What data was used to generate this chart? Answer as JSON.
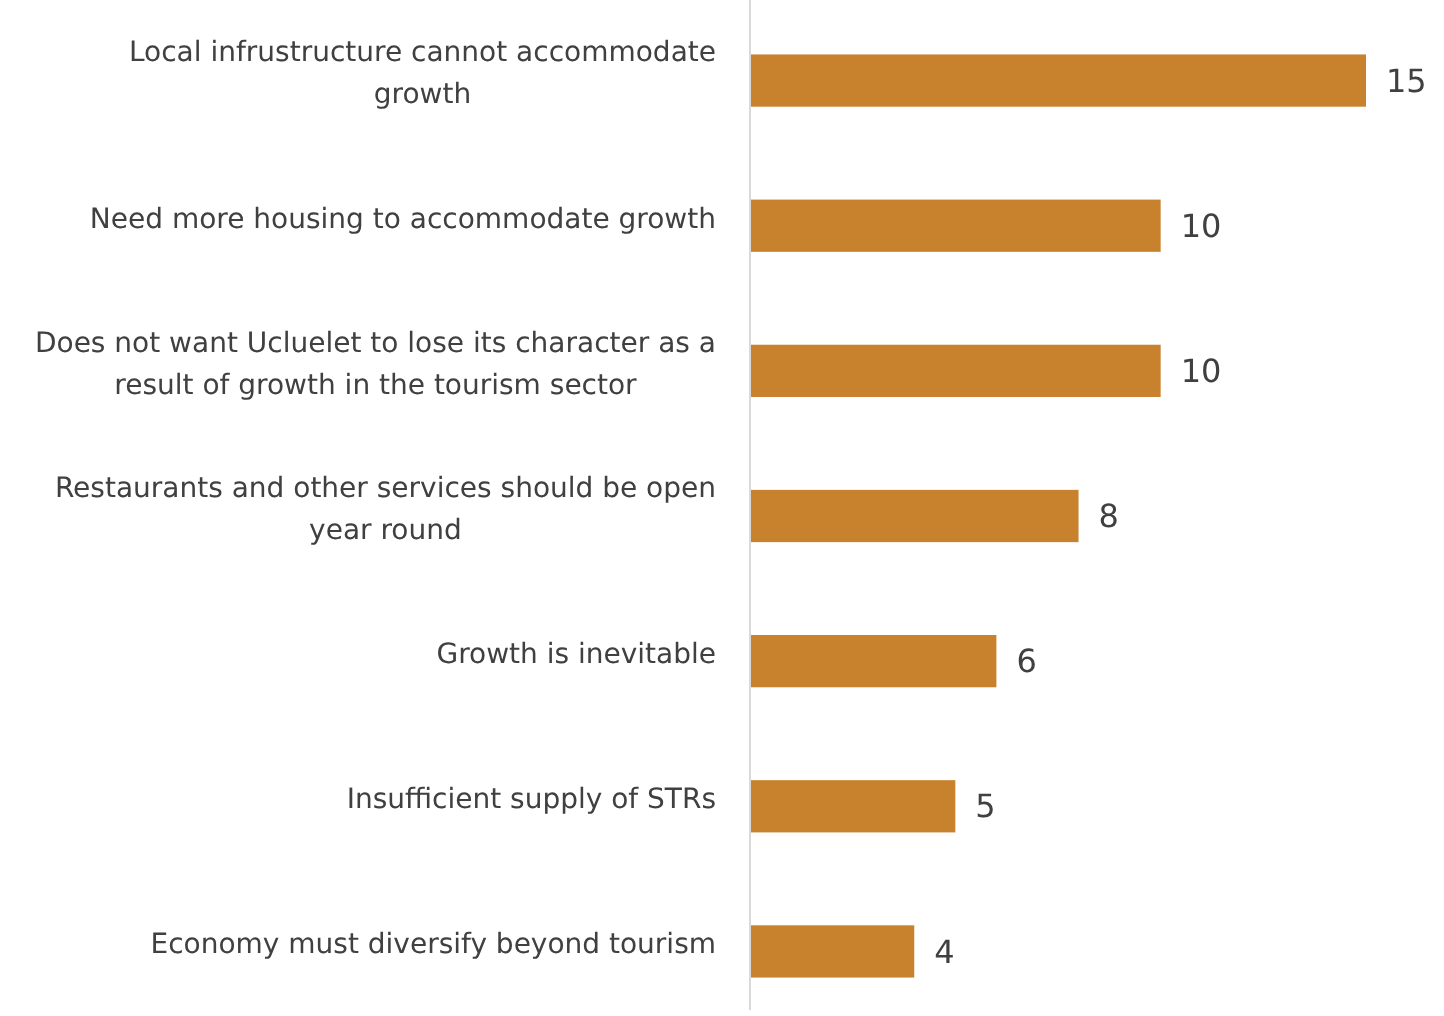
{
  "chart_data": {
    "type": "bar",
    "orientation": "horizontal",
    "categories": [
      "Local infrustructure cannot accommodate growth",
      "Need more housing to accommodate growth",
      "Does not want Ucluelet to lose its character as a result of growth in the tourism sector",
      "Restaurants and other services should be open year round",
      "Growth is inevitable",
      "Insufficient supply of STRs",
      "Economy must diversify beyond tourism"
    ],
    "values": [
      15,
      10,
      10,
      8,
      6,
      5,
      4
    ],
    "color": "#c8822e",
    "data_labels": true
  }
}
